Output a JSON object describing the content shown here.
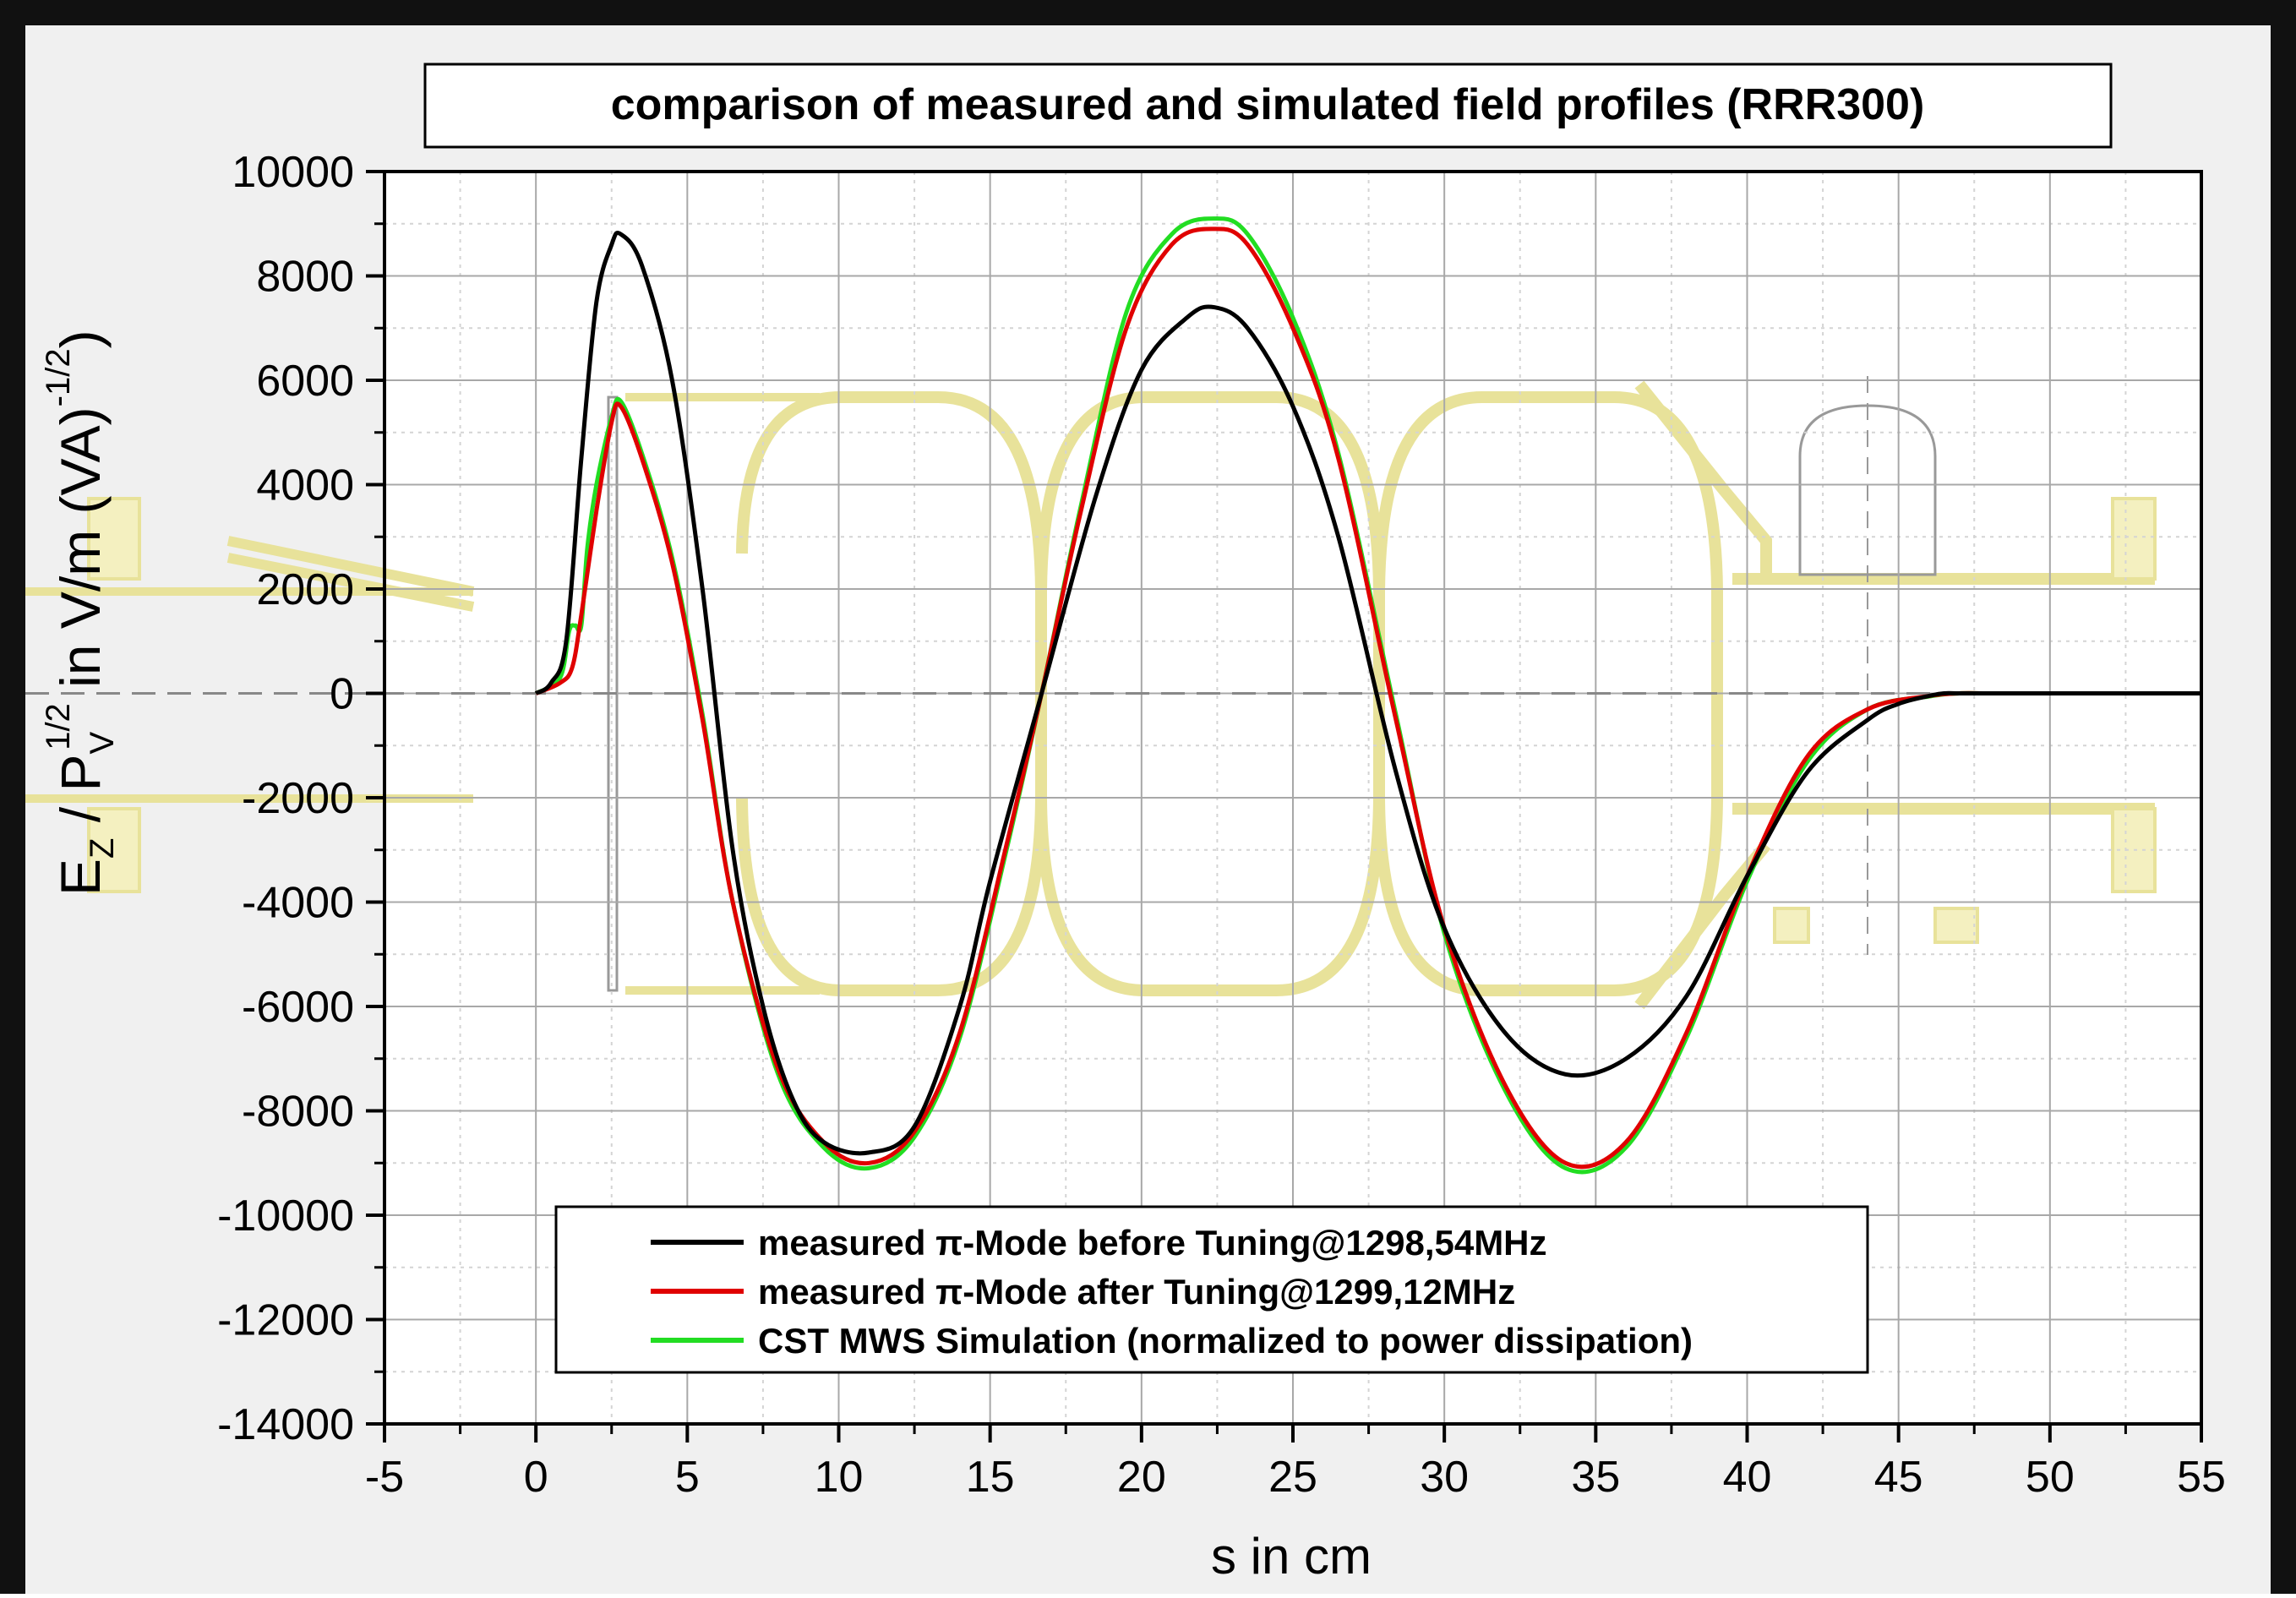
{
  "chart_data": {
    "type": "line",
    "title": "comparison of measured and simulated field profiles (RRR300)",
    "xlabel": "s in cm",
    "ylabel": "E_z / P_V^1/2 in V/m (VA)^-1/2",
    "xlim": [
      -5,
      55
    ],
    "ylim": [
      -14000,
      10000
    ],
    "xticks": [
      "-5",
      "0",
      "5",
      "10",
      "15",
      "20",
      "25",
      "30",
      "35",
      "40",
      "45",
      "50",
      "55"
    ],
    "yticks": [
      "-14000",
      "-12000",
      "-10000",
      "-8000",
      "-6000",
      "-4000",
      "-2000",
      "0",
      "2000",
      "4000",
      "6000",
      "8000",
      "10000"
    ],
    "grid": true,
    "legend_position": "bottom-center",
    "series": [
      {
        "name": "measured π-Mode before Tuning@1298,54MHz",
        "color": "#000000",
        "x": [
          0,
          0.5,
          1,
          1.5,
          2,
          2.5,
          2.8,
          3.5,
          4.5,
          5.5,
          6.5,
          7.5,
          8.5,
          9.5,
          11,
          12.5,
          14,
          15,
          16.7,
          18.5,
          20,
          21.5,
          22.4,
          23.5,
          25,
          26.5,
          28.4,
          30,
          32,
          34,
          36,
          38,
          40,
          42,
          44,
          45,
          46,
          46.5,
          47,
          48,
          50,
          53,
          55
        ],
        "y": [
          0,
          200,
          1000,
          4500,
          7500,
          8600,
          8800,
          8200,
          6000,
          2000,
          -3000,
          -6000,
          -7800,
          -8600,
          -8800,
          -8300,
          -6000,
          -3600,
          0,
          3800,
          6200,
          7200,
          7400,
          7000,
          5500,
          3000,
          -1500,
          -4500,
          -6500,
          -7300,
          -7000,
          -5800,
          -3500,
          -1500,
          -500,
          -200,
          -50,
          0,
          0,
          0,
          0,
          0,
          0
        ]
      },
      {
        "name": "measured π-Mode after Tuning@1299,12MHz",
        "color": "#e00000",
        "x": [
          0,
          0.8,
          1.2,
          1.5,
          2,
          2.5,
          2.8,
          3.5,
          4.5,
          5.5,
          6.5,
          8,
          9.5,
          11,
          12.5,
          14,
          15.5,
          16.7,
          18,
          19.5,
          21,
          22.4,
          23.5,
          25,
          26.5,
          28.4,
          30,
          32,
          34,
          36,
          38,
          40,
          42,
          44,
          46,
          47,
          48,
          50,
          53
        ],
        "y": [
          0,
          200,
          500,
          1500,
          3500,
          5200,
          5500,
          4500,
          2500,
          -500,
          -4000,
          -7200,
          -8600,
          -9000,
          -8400,
          -6500,
          -3000,
          0,
          3500,
          7000,
          8600,
          8900,
          8600,
          7000,
          4500,
          -500,
          -4500,
          -7500,
          -9000,
          -8600,
          -6500,
          -3500,
          -1200,
          -300,
          -50,
          0,
          0,
          0,
          0
        ]
      },
      {
        "name": "CST MWS Simulation (normalized to power dissipation)",
        "color": "#22dd22",
        "x": [
          0,
          0.8,
          1.1,
          1.3,
          1.5,
          1.7,
          2,
          2.5,
          2.8,
          3.5,
          4.5,
          5.5,
          6.5,
          8,
          9.5,
          11,
          12.5,
          14,
          15.5,
          16.7,
          18,
          19.5,
          21,
          22.4,
          23.5,
          25,
          26.5,
          28.4,
          30,
          32,
          34,
          36,
          38,
          40,
          42,
          44,
          46,
          47,
          48,
          50,
          53
        ],
        "y": [
          0,
          300,
          1200,
          1300,
          1300,
          2800,
          4000,
          5300,
          5600,
          4600,
          2600,
          -400,
          -4000,
          -7300,
          -8700,
          -9100,
          -8500,
          -6600,
          -3100,
          0,
          3600,
          7300,
          8800,
          9100,
          8800,
          7200,
          4600,
          -400,
          -4600,
          -7600,
          -9100,
          -8700,
          -6600,
          -3600,
          -1300,
          -300,
          -60,
          0,
          0,
          0,
          0
        ]
      }
    ]
  }
}
